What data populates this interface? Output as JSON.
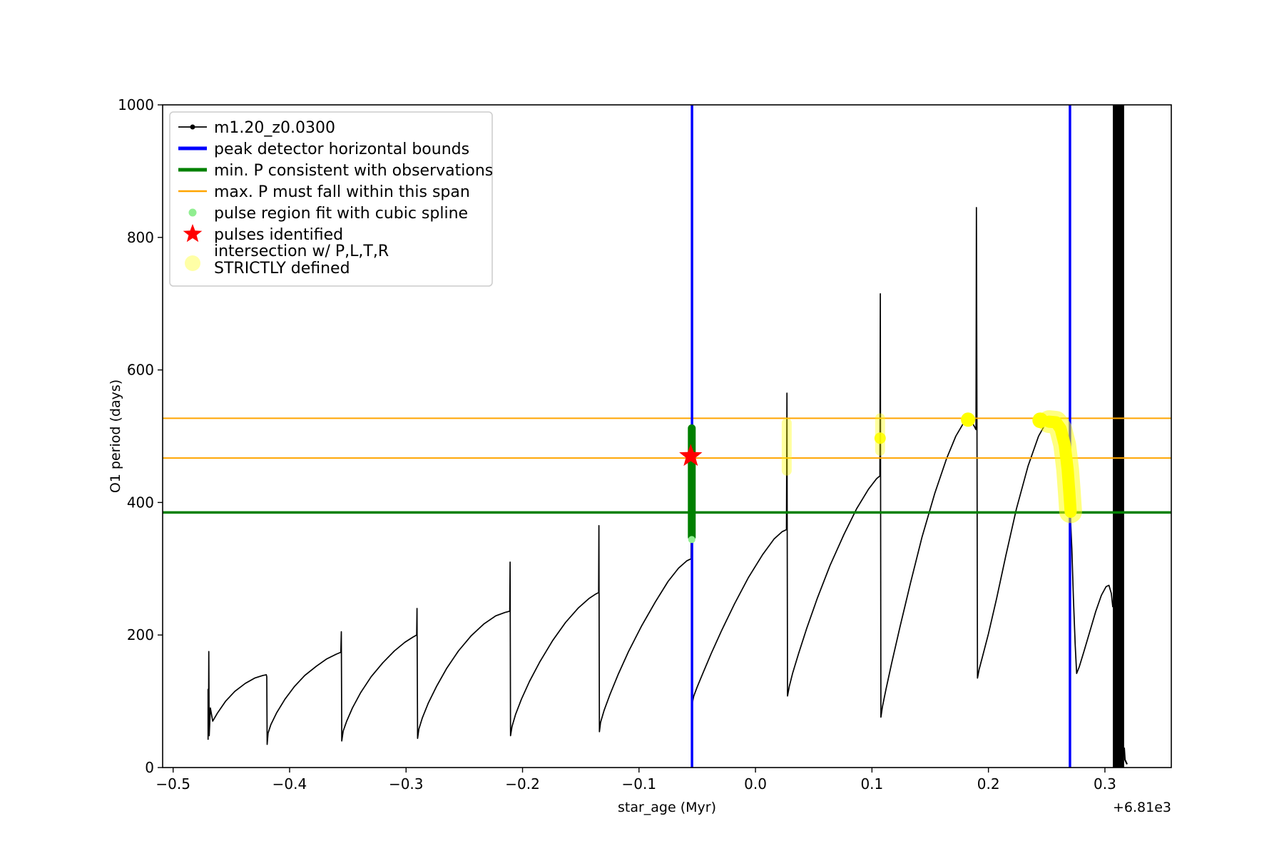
{
  "figure": {
    "background": "#ffffff",
    "axis_color": "#000000"
  },
  "chart_data": {
    "type": "line",
    "title": "",
    "xlabel": "star_age (Myr)",
    "ylabel": "O1 period (days)",
    "x_offset_text": "+6.81e3",
    "xlim": [
      -0.509,
      0.357
    ],
    "ylim": [
      0,
      1000
    ],
    "grid": false,
    "legend_position": "upper-left",
    "xticks": {
      "values": [
        -0.5,
        -0.4,
        -0.3,
        -0.2,
        -0.1,
        0.0,
        0.1,
        0.2,
        0.3
      ],
      "labels": [
        "−0.5",
        "−0.4",
        "−0.3",
        "−0.2",
        "−0.1",
        "0.0",
        "0.1",
        "0.2",
        "0.3"
      ]
    },
    "yticks": {
      "values": [
        0,
        200,
        400,
        600,
        800,
        1000
      ],
      "labels": [
        "0",
        "200",
        "400",
        "600",
        "800",
        "1000"
      ]
    },
    "legend": [
      {
        "label": "m1.20_z0.0300",
        "marker": "line-dot",
        "color": "#000000",
        "opacity": 1
      },
      {
        "label": "peak detector horizontal bounds",
        "marker": "line-thick",
        "color": "#0000ff",
        "opacity": 1
      },
      {
        "label": "min. P consistent with observations",
        "marker": "line-thick",
        "color": "#008000",
        "opacity": 1
      },
      {
        "label": "max. P must fall within this span",
        "marker": "line",
        "color": "#ffa500",
        "opacity": 1
      },
      {
        "label": "pulse region fit with cubic spline",
        "marker": "dot-small",
        "color": "#90ee90",
        "opacity": 1
      },
      {
        "label": "pulses identified",
        "marker": "star",
        "color": "#ff0000",
        "opacity": 1
      },
      {
        "label": "intersection w/ P,L,T,R\nSTRICTLY defined",
        "marker": "dot-large",
        "color": "#ffff00",
        "opacity": 0.35
      }
    ],
    "series": [
      {
        "name": "main-curve",
        "type": "line",
        "color": "#000000",
        "width": 1.7,
        "points": [
          [
            -0.47,
            42
          ],
          [
            -0.47,
            118
          ],
          [
            -0.4696,
            58
          ],
          [
            -0.4694,
            175
          ],
          [
            -0.469,
            48
          ],
          [
            -0.468,
            90
          ],
          [
            -0.466,
            70
          ],
          [
            -0.462,
            82
          ],
          [
            -0.455,
            100
          ],
          [
            -0.447,
            115
          ],
          [
            -0.438,
            127
          ],
          [
            -0.43,
            135
          ],
          [
            -0.423,
            139
          ],
          [
            -0.42,
            140
          ],
          [
            -0.4196,
            137
          ],
          [
            -0.4193,
            35
          ],
          [
            -0.4185,
            52
          ],
          [
            -0.416,
            65
          ],
          [
            -0.411,
            83
          ],
          [
            -0.404,
            103
          ],
          [
            -0.396,
            122
          ],
          [
            -0.387,
            139
          ],
          [
            -0.377,
            153
          ],
          [
            -0.368,
            164
          ],
          [
            -0.36,
            171
          ],
          [
            -0.356,
            174
          ],
          [
            -0.3556,
            205
          ],
          [
            -0.3552,
            40
          ],
          [
            -0.354,
            55
          ],
          [
            -0.351,
            70
          ],
          [
            -0.346,
            90
          ],
          [
            -0.339,
            113
          ],
          [
            -0.33,
            137
          ],
          [
            -0.32,
            158
          ],
          [
            -0.31,
            176
          ],
          [
            -0.301,
            189
          ],
          [
            -0.294,
            197
          ],
          [
            -0.2909,
            200
          ],
          [
            -0.2906,
            240
          ],
          [
            -0.2901,
            44
          ],
          [
            -0.289,
            58
          ],
          [
            -0.286,
            75
          ],
          [
            -0.281,
            97
          ],
          [
            -0.274,
            122
          ],
          [
            -0.265,
            150
          ],
          [
            -0.255,
            176
          ],
          [
            -0.244,
            199
          ],
          [
            -0.233,
            217
          ],
          [
            -0.223,
            229
          ],
          [
            -0.215,
            234
          ],
          [
            -0.211,
            236
          ],
          [
            -0.2107,
            310
          ],
          [
            -0.2103,
            48
          ],
          [
            -0.209,
            62
          ],
          [
            -0.206,
            80
          ],
          [
            -0.201,
            103
          ],
          [
            -0.194,
            130
          ],
          [
            -0.185,
            160
          ],
          [
            -0.174,
            192
          ],
          [
            -0.163,
            219
          ],
          [
            -0.152,
            241
          ],
          [
            -0.143,
            255
          ],
          [
            -0.137,
            262
          ],
          [
            -0.1347,
            264
          ],
          [
            -0.1344,
            365
          ],
          [
            -0.134,
            54
          ],
          [
            -0.133,
            68
          ],
          [
            -0.13,
            86
          ],
          [
            -0.125,
            110
          ],
          [
            -0.118,
            140
          ],
          [
            -0.109,
            175
          ],
          [
            -0.098,
            213
          ],
          [
            -0.086,
            250
          ],
          [
            -0.075,
            281
          ],
          [
            -0.066,
            301
          ],
          [
            -0.059,
            312
          ],
          [
            -0.0553,
            315
          ],
          [
            -0.0549,
            510
          ],
          [
            -0.0545,
            95
          ],
          [
            -0.053,
            108
          ],
          [
            -0.05,
            122
          ],
          [
            -0.045,
            143
          ],
          [
            -0.038,
            172
          ],
          [
            -0.029,
            207
          ],
          [
            -0.018,
            247
          ],
          [
            -0.006,
            287
          ],
          [
            0.006,
            321
          ],
          [
            0.016,
            345
          ],
          [
            0.023,
            356
          ],
          [
            0.0266,
            359
          ],
          [
            0.027,
            565
          ],
          [
            0.0275,
            108
          ],
          [
            0.029,
            122
          ],
          [
            0.032,
            143
          ],
          [
            0.037,
            172
          ],
          [
            0.044,
            210
          ],
          [
            0.053,
            255
          ],
          [
            0.064,
            305
          ],
          [
            0.076,
            352
          ],
          [
            0.087,
            391
          ],
          [
            0.097,
            420
          ],
          [
            0.104,
            436
          ],
          [
            0.1068,
            440
          ],
          [
            0.1072,
            715
          ],
          [
            0.1077,
            76
          ],
          [
            0.109,
            92
          ],
          [
            0.112,
            118
          ],
          [
            0.117,
            158
          ],
          [
            0.124,
            212
          ],
          [
            0.133,
            278
          ],
          [
            0.143,
            348
          ],
          [
            0.154,
            414
          ],
          [
            0.164,
            466
          ],
          [
            0.172,
            500
          ],
          [
            0.178,
            518
          ],
          [
            0.1825,
            525
          ],
          [
            0.186,
            521
          ],
          [
            0.1893,
            510
          ],
          [
            0.1897,
            845
          ],
          [
            0.1902,
            506
          ],
          [
            0.1906,
            135
          ],
          [
            0.192,
            148
          ],
          [
            0.195,
            168
          ],
          [
            0.2,
            202
          ],
          [
            0.207,
            255
          ],
          [
            0.215,
            320
          ],
          [
            0.224,
            390
          ],
          [
            0.234,
            455
          ],
          [
            0.243,
            500
          ],
          [
            0.25,
            522
          ],
          [
            0.2555,
            529
          ],
          [
            0.26,
            520
          ],
          [
            0.264,
            492
          ],
          [
            0.267,
            452
          ],
          [
            0.269,
            412
          ],
          [
            0.2703,
            383
          ],
          [
            0.2716,
            330
          ],
          [
            0.273,
            255
          ],
          [
            0.2745,
            185
          ],
          [
            0.2757,
            142
          ],
          [
            0.278,
            152
          ],
          [
            0.282,
            175
          ],
          [
            0.287,
            205
          ],
          [
            0.292,
            235
          ],
          [
            0.297,
            260
          ],
          [
            0.301,
            273
          ],
          [
            0.3035,
            275
          ],
          [
            0.3055,
            263
          ],
          [
            0.3068,
            242
          ]
        ]
      },
      {
        "name": "main-curve-dense-band",
        "type": "rect",
        "color": "#000000",
        "x0": 0.3068,
        "x1": 0.3165,
        "y0": 0,
        "y1": 1000
      },
      {
        "name": "main-curve-tail",
        "type": "line",
        "color": "#000000",
        "width": 2.2,
        "points": [
          [
            0.3165,
            30
          ],
          [
            0.3172,
            12
          ],
          [
            0.319,
            5
          ]
        ]
      },
      {
        "name": "max-p-span-upper",
        "type": "hline",
        "y": 527,
        "color": "#ffa500",
        "width": 2
      },
      {
        "name": "max-p-span-lower",
        "type": "hline",
        "y": 467,
        "color": "#ffa500",
        "width": 2
      },
      {
        "name": "min-p-observed",
        "type": "hline",
        "y": 385,
        "color": "#008000",
        "width": 3.5
      },
      {
        "name": "peak-detector-bound-left",
        "type": "vline",
        "x": -0.0545,
        "color": "#0000ff",
        "width": 3.5
      },
      {
        "name": "peak-detector-bound-right",
        "type": "vline",
        "x": 0.27,
        "color": "#0000ff",
        "width": 3.5
      },
      {
        "name": "intersection-strip-1",
        "type": "segment",
        "x": 0.0268,
        "y0": 448,
        "y1": 520,
        "color": "#ffff00",
        "width": 14,
        "opacity": 0.38,
        "cap": "round"
      },
      {
        "name": "intersection-strip-2",
        "type": "segment",
        "x": 0.107,
        "y0": 478,
        "y1": 527,
        "color": "#ffff00",
        "width": 14,
        "opacity": 0.38,
        "cap": "round"
      },
      {
        "name": "intersection-dot-1",
        "type": "scatter",
        "color": "#ffff00",
        "size": 8,
        "opacity": 0.9,
        "points": [
          [
            0.107,
            497
          ]
        ]
      },
      {
        "name": "intersection-dot-2",
        "type": "scatter",
        "color": "#ffff00",
        "size": 10,
        "opacity": 1,
        "points": [
          [
            0.1825,
            525
          ]
        ]
      },
      {
        "name": "intersection-dot-3",
        "type": "scatter",
        "color": "#ffff00",
        "size": 11,
        "opacity": 1,
        "points": [
          [
            0.2445,
            524
          ]
        ]
      },
      {
        "name": "intersection-blob-halo",
        "type": "line",
        "color": "#ffff00",
        "width": 32,
        "opacity": 0.5,
        "cap": "round",
        "points": [
          [
            0.252,
            522
          ],
          [
            0.258,
            521
          ],
          [
            0.262,
            511
          ],
          [
            0.2655,
            487
          ],
          [
            0.268,
            450
          ],
          [
            0.2695,
            415
          ],
          [
            0.2706,
            386
          ]
        ]
      },
      {
        "name": "intersection-blob-core",
        "type": "line",
        "color": "#ffff00",
        "width": 17,
        "opacity": 1,
        "cap": "round",
        "points": [
          [
            0.252,
            522
          ],
          [
            0.258,
            521
          ],
          [
            0.262,
            511
          ],
          [
            0.2655,
            487
          ],
          [
            0.268,
            450
          ],
          [
            0.2695,
            415
          ],
          [
            0.2706,
            386
          ]
        ]
      },
      {
        "name": "pulse-region-spline",
        "type": "segment",
        "x": -0.0547,
        "y0": 348,
        "y1": 512,
        "color": "#008000",
        "width": 11,
        "opacity": 1,
        "cap": "round"
      },
      {
        "name": "pulse-region-dot",
        "type": "scatter",
        "color": "#90ee90",
        "size": 5,
        "opacity": 1,
        "points": [
          [
            -0.0547,
            344
          ]
        ]
      },
      {
        "name": "pulse-identified-star",
        "type": "star",
        "x": -0.0556,
        "y": 470,
        "color": "#ff0000",
        "size": 17
      }
    ]
  }
}
